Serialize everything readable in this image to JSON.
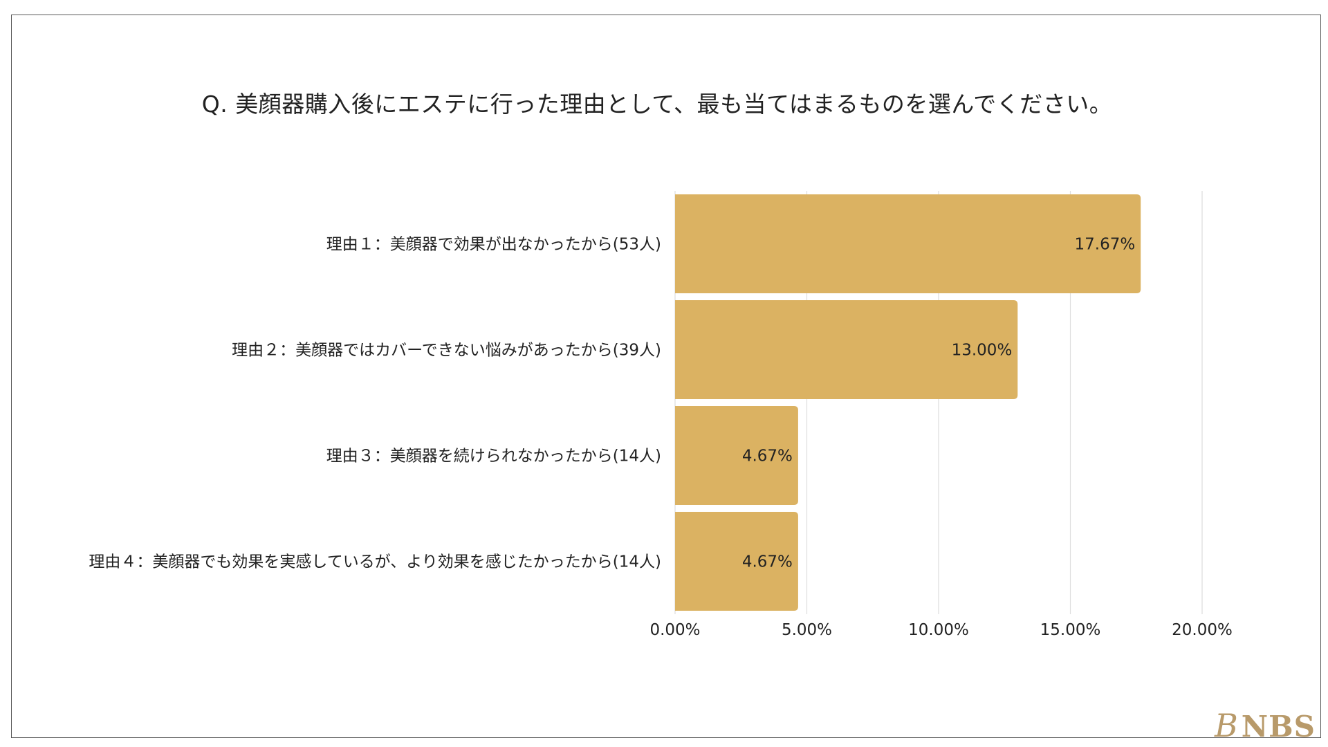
{
  "chart_data": {
    "type": "bar",
    "orientation": "horizontal",
    "title": "Q.  美顔器購入後にエステに行った理由として、最も当てはまるものを選んでください。",
    "categories": [
      "理由１：美顔器で効果が出なかったから(53人)",
      "理由２：美顔器ではカバーできない悩みがあったから(39人)",
      "理由３：美顔器を続けられなかったから(14人)",
      "理由４：美顔器でも効果を実感しているが、より効果を感じたかったから(14人)"
    ],
    "values": [
      17.67,
      13.0,
      4.67,
      4.67
    ],
    "value_labels": [
      "17.67%",
      "13.00%",
      "4.67%",
      "4.67%"
    ],
    "xlim": [
      0,
      20
    ],
    "xticks": [
      0,
      5,
      10,
      15,
      20
    ],
    "xtick_labels": [
      "0.00%",
      "5.00%",
      "10.00%",
      "15.00%",
      "20.00%"
    ],
    "xlabel": "",
    "ylabel": "",
    "grid": true,
    "bar_color": "#dbb262",
    "grid_color": "#dddddd"
  },
  "logo": {
    "monogram": "B",
    "text": "NBS"
  }
}
